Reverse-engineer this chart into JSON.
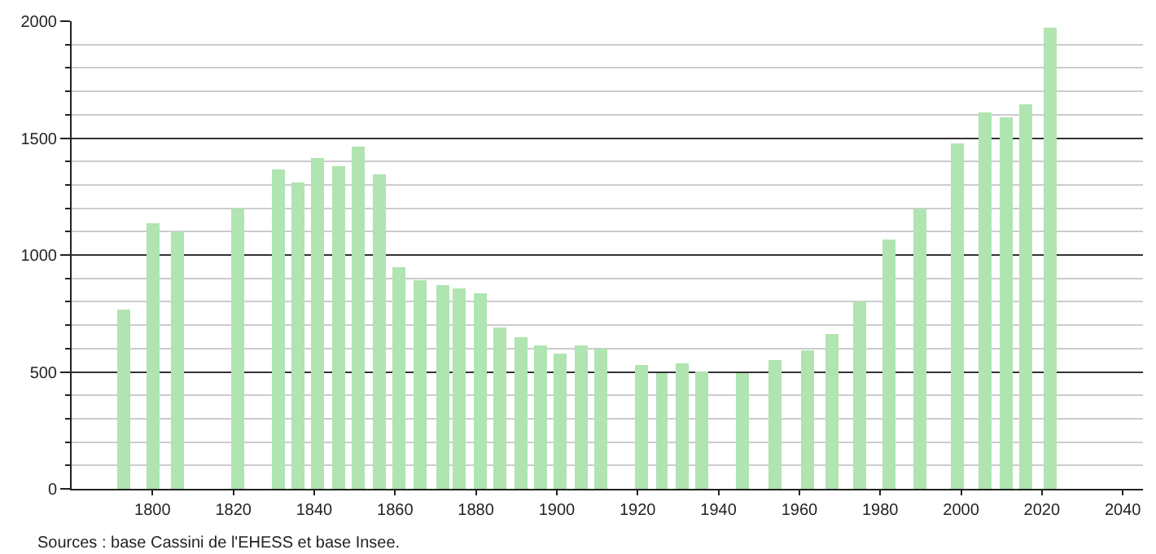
{
  "chart_data": {
    "type": "bar",
    "x": [
      1793,
      1800,
      1806,
      1821,
      1831,
      1836,
      1841,
      1846,
      1851,
      1856,
      1861,
      1866,
      1872,
      1876,
      1881,
      1886,
      1891,
      1896,
      1901,
      1906,
      1911,
      1921,
      1926,
      1931,
      1936,
      1946,
      1954,
      1962,
      1968,
      1975,
      1982,
      1990,
      1999,
      2006,
      2011,
      2016,
      2022
    ],
    "values": [
      770,
      1138,
      1099,
      1200,
      1366,
      1310,
      1412,
      1379,
      1464,
      1343,
      950,
      892,
      869,
      857,
      839,
      692,
      646,
      612,
      577,
      612,
      598,
      529,
      497,
      538,
      501,
      497,
      552,
      595,
      662,
      798,
      1067,
      1198,
      1478,
      1611,
      1586,
      1648,
      1970
    ],
    "color": "#b0e4b0",
    "xlim": [
      1780,
      2045
    ],
    "xticks": [
      1800,
      1820,
      1840,
      1860,
      1880,
      1900,
      1920,
      1940,
      1960,
      1980,
      2000,
      2020,
      2040
    ],
    "ylim": [
      0,
      2000
    ],
    "yticks": [
      0,
      500,
      1000,
      1500,
      2000
    ],
    "grid": "y",
    "legend": false,
    "annotations": [
      "Sources : base Cassini de l'EHESS et base Insee."
    ]
  }
}
